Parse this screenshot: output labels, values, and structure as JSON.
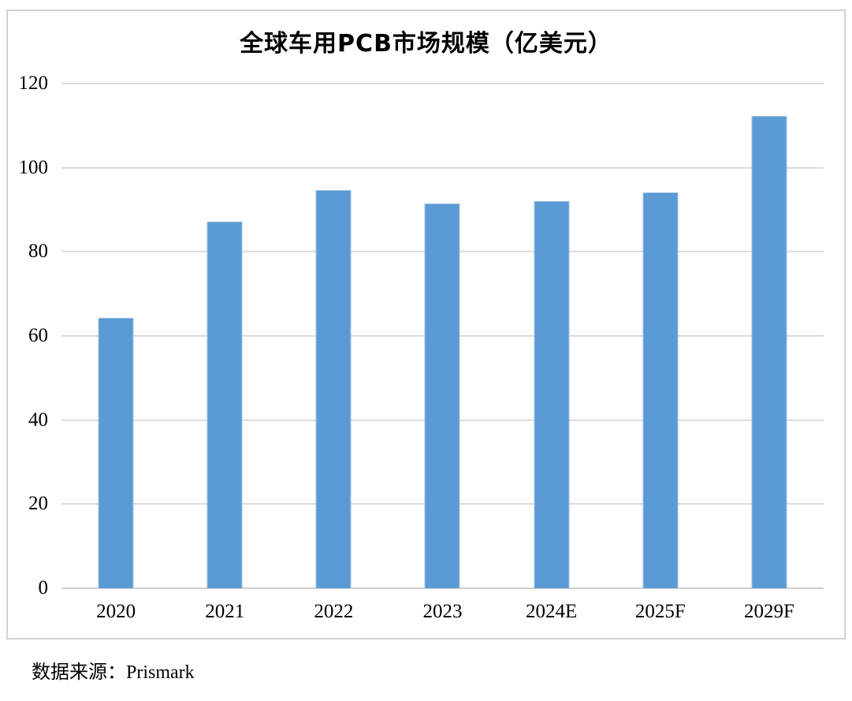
{
  "chart": {
    "colors": {
      "bar": "#5B9BD5",
      "bar_edge": "#9DC3E6",
      "gridline": "#DCDCDC",
      "axis_line": "#CFCECE",
      "frame_border": "#D2D2D2",
      "text": "#000000",
      "background": "#FFFFFF"
    }
  },
  "chart_data": {
    "type": "bar",
    "title": "全球车用PCB市场规模（亿美元）",
    "categories": [
      "2020",
      "2021",
      "2022",
      "2023",
      "2024E",
      "2025F",
      "2029F"
    ],
    "values": [
      64.4,
      87.2,
      94.7,
      91.5,
      92.0,
      94.2,
      112.3
    ],
    "xlabel": "",
    "ylabel": "",
    "ylim": [
      0,
      120
    ],
    "yticks": [
      0,
      20,
      40,
      60,
      80,
      100,
      120
    ],
    "grid": true,
    "legend": false,
    "legend_position": "none",
    "bar_color": "#5B9BD5",
    "source": "数据来源：Prismark"
  }
}
